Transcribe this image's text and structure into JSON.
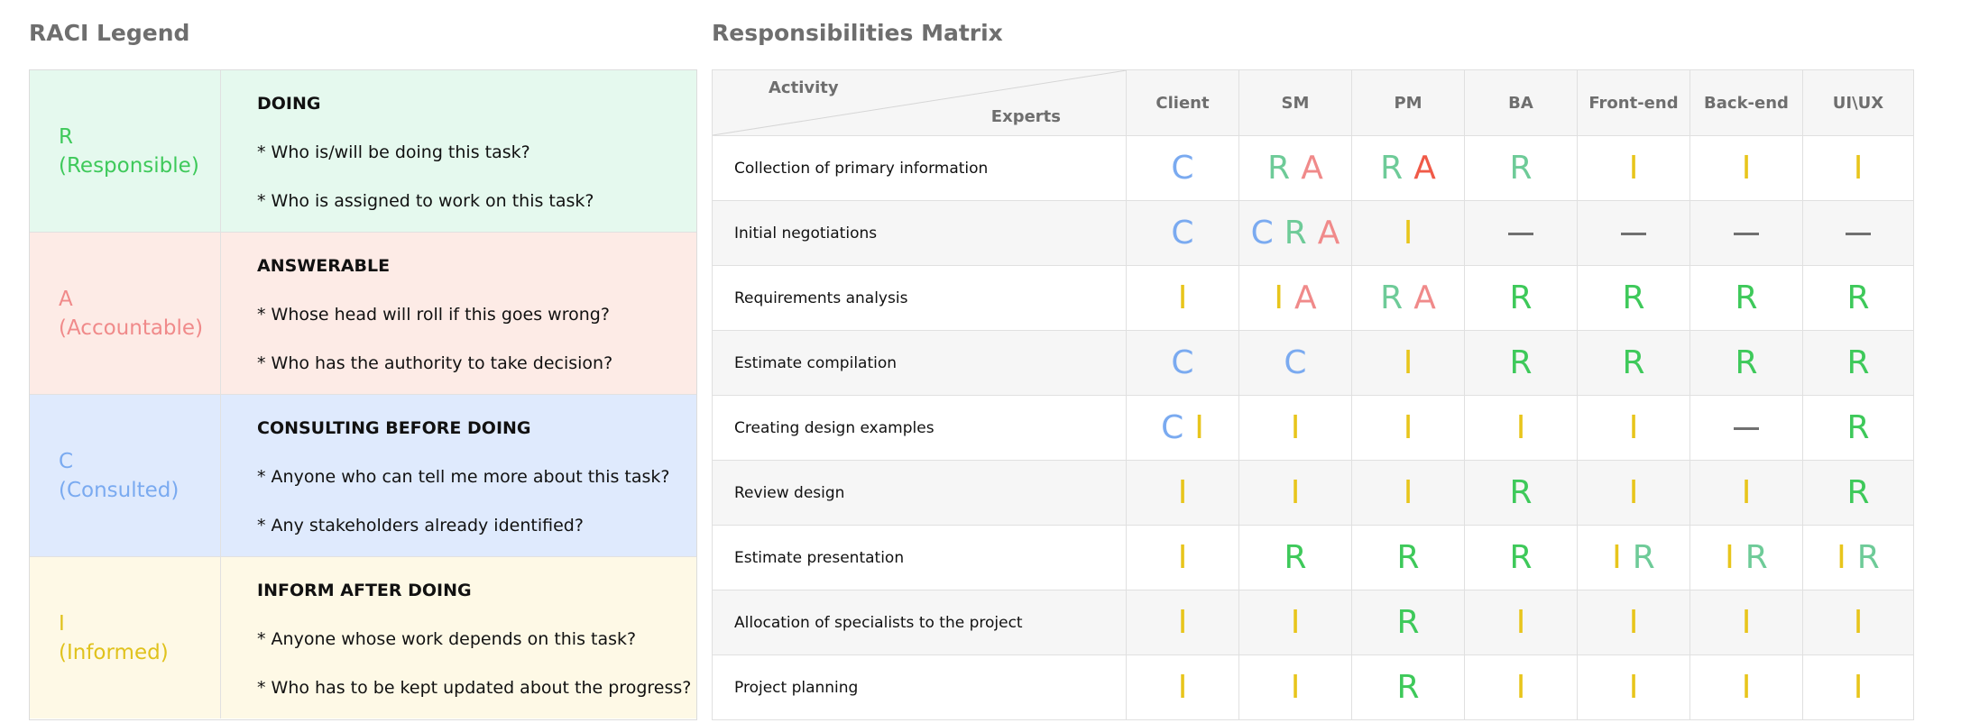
{
  "legend": {
    "title": "RACI Legend",
    "rows": [
      {
        "key": "R",
        "name": "(Responsible)",
        "color": "#3ec95a",
        "bg": "#e5f9ee",
        "heading": "DOING",
        "lines": [
          "* Who is/will be doing this task?",
          "* Who is assigned to work on this task?"
        ]
      },
      {
        "key": "A",
        "name": "(Accountable)",
        "color": "#f08a8a",
        "bg": "#fdebe6",
        "heading": "ANSWERABLE",
        "lines": [
          "* Whose head will roll if this goes wrong?",
          "* Who has the authority to take decision?"
        ]
      },
      {
        "key": "C",
        "name": "(Consulted)",
        "color": "#7aaaf0",
        "bg": "#dfeafd",
        "heading": "CONSULTING BEFORE DOING",
        "lines": [
          "* Anyone who can tell me more about this task?",
          "* Any stakeholders already identified?"
        ]
      },
      {
        "key": "I",
        "name": "(Informed)",
        "color": "#e0c21c",
        "bg": "#fef9e6",
        "heading": "INFORM AFTER DOING",
        "lines": [
          "* Anyone whose work depends on this task?",
          "* Who has to be kept updated about the progress?"
        ]
      }
    ]
  },
  "matrix": {
    "title": "Responsibilities Matrix",
    "activity_label": "Activity",
    "experts_label": "Experts",
    "experts": [
      "Client",
      "SM",
      "PM",
      "BA",
      "Front-end",
      "Back-end",
      "UI\\UX"
    ],
    "letter_colors": {
      "R": "#3ec95a",
      "R2": "#6ecb98",
      "A": "#f08a8a",
      "A2": "#f05a48",
      "C": "#7aaaf0",
      "I": "#e8c51c"
    },
    "rows": [
      {
        "activity": "Collection of primary information",
        "cells": [
          [
            "C"
          ],
          [
            "R2",
            "A"
          ],
          [
            "R2",
            "A2"
          ],
          [
            "R2"
          ],
          [
            "I"
          ],
          [
            "I"
          ],
          [
            "I"
          ]
        ]
      },
      {
        "activity": "Initial negotiations",
        "cells": [
          [
            "C"
          ],
          [
            "C",
            "R2",
            "A"
          ],
          [
            "I"
          ],
          [
            "-"
          ],
          [
            "-"
          ],
          [
            "-"
          ],
          [
            "-"
          ]
        ]
      },
      {
        "activity": "Requirements analysis",
        "cells": [
          [
            "I"
          ],
          [
            "I",
            "A"
          ],
          [
            "R2",
            "A"
          ],
          [
            "R"
          ],
          [
            "R"
          ],
          [
            "R"
          ],
          [
            "R"
          ]
        ]
      },
      {
        "activity": "Estimate compilation",
        "cells": [
          [
            "C"
          ],
          [
            "C"
          ],
          [
            "I"
          ],
          [
            "R"
          ],
          [
            "R"
          ],
          [
            "R"
          ],
          [
            "R"
          ]
        ]
      },
      {
        "activity": "Creating design examples",
        "cells": [
          [
            "C",
            "I"
          ],
          [
            "I"
          ],
          [
            "I"
          ],
          [
            "I"
          ],
          [
            "I"
          ],
          [
            "-"
          ],
          [
            "R"
          ]
        ]
      },
      {
        "activity": "Review design",
        "cells": [
          [
            "I"
          ],
          [
            "I"
          ],
          [
            "I"
          ],
          [
            "R"
          ],
          [
            "I"
          ],
          [
            "I"
          ],
          [
            "R"
          ]
        ]
      },
      {
        "activity": "Estimate presentation",
        "cells": [
          [
            "I"
          ],
          [
            "R"
          ],
          [
            "R"
          ],
          [
            "R"
          ],
          [
            "I",
            "R2"
          ],
          [
            "I",
            "R2"
          ],
          [
            "I",
            "R2"
          ]
        ]
      },
      {
        "activity": "Allocation of specialists to the project",
        "cells": [
          [
            "I"
          ],
          [
            "I"
          ],
          [
            "R"
          ],
          [
            "I"
          ],
          [
            "I"
          ],
          [
            "I"
          ],
          [
            "I"
          ]
        ]
      },
      {
        "activity": "Project planning",
        "cells": [
          [
            "I"
          ],
          [
            "I"
          ],
          [
            "R"
          ],
          [
            "I"
          ],
          [
            "I"
          ],
          [
            "I"
          ],
          [
            "I"
          ]
        ]
      }
    ]
  }
}
